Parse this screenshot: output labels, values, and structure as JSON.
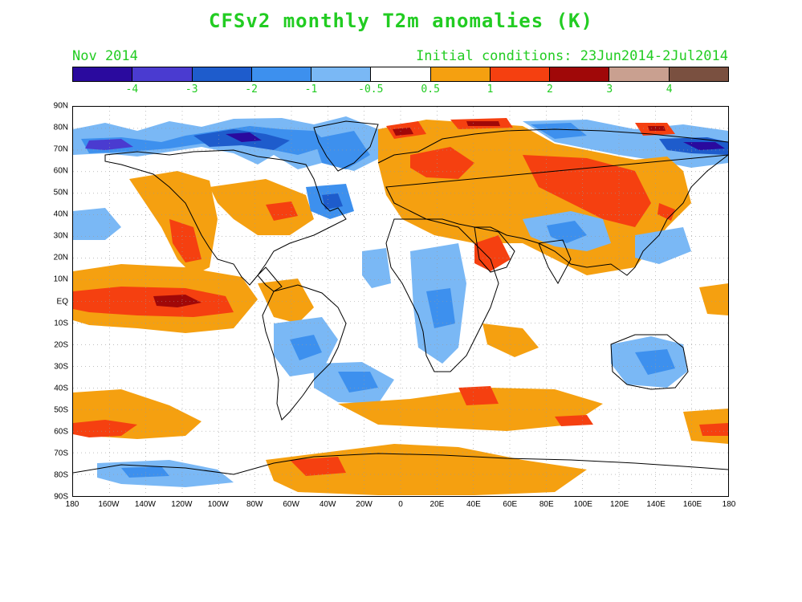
{
  "title": "CFSv2 monthly T2m anomalies (K)",
  "month_label": "Nov 2014",
  "initial_conditions": "Initial conditions: 23Jun2014-2Jul2014",
  "colorbar": {
    "colors": [
      "#2a0a9e",
      "#4a3bd0",
      "#1e5ccc",
      "#3d90ee",
      "#7ab8f5",
      "#ffffff",
      "#f5a010",
      "#f54010",
      "#a00808",
      "#c9a090",
      "#7a5040"
    ],
    "labels": [
      "-4",
      "-3",
      "-2",
      "-1",
      "-0.5",
      "0.5",
      "1",
      "2",
      "3",
      "4"
    ]
  },
  "lat_labels": [
    "90N",
    "80N",
    "70N",
    "60N",
    "50N",
    "40N",
    "30N",
    "20N",
    "10N",
    "EQ",
    "10S",
    "20S",
    "30S",
    "40S",
    "50S",
    "60S",
    "70S",
    "80S",
    "90S"
  ],
  "lon_labels": [
    "180",
    "160W",
    "140W",
    "120W",
    "100W",
    "80W",
    "60W",
    "40W",
    "20W",
    "0",
    "20E",
    "40E",
    "60E",
    "80E",
    "100E",
    "120E",
    "140E",
    "160E",
    "180"
  ],
  "colors": {
    "title_green": "#22cc22",
    "coast": "#000000",
    "grid": "#999999"
  }
}
